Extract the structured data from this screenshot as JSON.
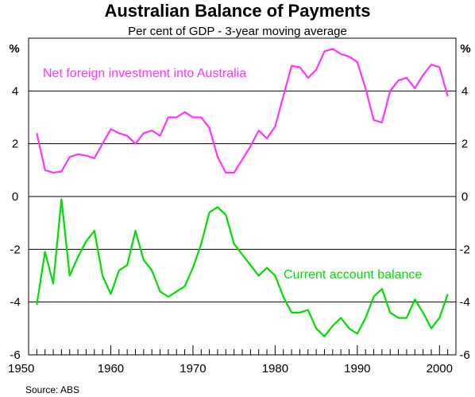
{
  "chart_data": {
    "type": "line",
    "title": "Australian Balance of Payments",
    "subtitle": "Per cent of GDP -  3-year moving average",
    "y_unit_left": "%",
    "y_unit_right": "%",
    "source": "Source: ABS",
    "xlim": [
      1950,
      2002
    ],
    "ylim": [
      -6,
      6
    ],
    "y_ticks": [
      4,
      2,
      0,
      -2,
      -4,
      -6
    ],
    "y_tick_labels": [
      "4",
      "2",
      "0",
      "-2",
      "-4",
      "-6"
    ],
    "x_ticks": [
      1950,
      1960,
      1970,
      1980,
      1990,
      2000
    ],
    "x_tick_labels": [
      "1950",
      "1960",
      "1970",
      "1980",
      "1990",
      "2000"
    ],
    "grid": "horizontal",
    "series": [
      {
        "name": "Net foreign investment into Australia",
        "color": "#ff33ff",
        "x": [
          1951,
          1952,
          1953,
          1954,
          1955,
          1956,
          1957,
          1958,
          1959,
          1960,
          1961,
          1962,
          1963,
          1964,
          1965,
          1966,
          1967,
          1968,
          1969,
          1970,
          1971,
          1972,
          1973,
          1974,
          1975,
          1976,
          1977,
          1978,
          1979,
          1980,
          1981,
          1982,
          1983,
          1984,
          1985,
          1986,
          1987,
          1988,
          1989,
          1990,
          1991,
          1992,
          1993,
          1994,
          1995,
          1996,
          1997,
          1998,
          1999,
          2000,
          2001
        ],
        "values": [
          2.4,
          1.0,
          0.9,
          0.95,
          1.5,
          1.6,
          1.55,
          1.45,
          2.0,
          2.55,
          2.4,
          2.3,
          2.0,
          2.4,
          2.5,
          2.3,
          3.0,
          3.0,
          3.2,
          3.0,
          3.0,
          2.6,
          1.5,
          0.9,
          0.9,
          1.4,
          1.9,
          2.5,
          2.2,
          2.65,
          3.8,
          4.95,
          4.9,
          4.5,
          4.8,
          5.5,
          5.6,
          5.4,
          5.3,
          5.1,
          4.1,
          2.9,
          2.8,
          4.0,
          4.4,
          4.5,
          4.1,
          4.6,
          5.0,
          4.9,
          3.8
        ]
      },
      {
        "name": "Current account balance",
        "color": "#00dd00",
        "x": [
          1951,
          1952,
          1953,
          1954,
          1955,
          1956,
          1957,
          1958,
          1959,
          1960,
          1961,
          1962,
          1963,
          1964,
          1965,
          1966,
          1967,
          1968,
          1969,
          1970,
          1971,
          1972,
          1973,
          1974,
          1975,
          1976,
          1977,
          1978,
          1979,
          1980,
          1981,
          1982,
          1983,
          1984,
          1985,
          1986,
          1987,
          1988,
          1989,
          1990,
          1991,
          1992,
          1993,
          1994,
          1995,
          1996,
          1997,
          1998,
          1999,
          2000,
          2001
        ],
        "values": [
          -4.1,
          -2.1,
          -3.3,
          -0.1,
          -3.0,
          -2.3,
          -1.7,
          -1.3,
          -3.0,
          -3.7,
          -2.8,
          -2.6,
          -1.3,
          -2.4,
          -2.8,
          -3.6,
          -3.8,
          -3.6,
          -3.4,
          -2.7,
          -1.8,
          -0.6,
          -0.4,
          -0.7,
          -1.8,
          -2.2,
          -2.6,
          -3.0,
          -2.7,
          -3.0,
          -3.8,
          -4.4,
          -4.4,
          -4.3,
          -5.0,
          -5.3,
          -4.9,
          -4.6,
          -5.0,
          -5.2,
          -4.6,
          -3.8,
          -3.5,
          -4.4,
          -4.6,
          -4.6,
          -3.9,
          -4.4,
          -5.0,
          -4.6,
          -3.7
        ]
      }
    ]
  }
}
